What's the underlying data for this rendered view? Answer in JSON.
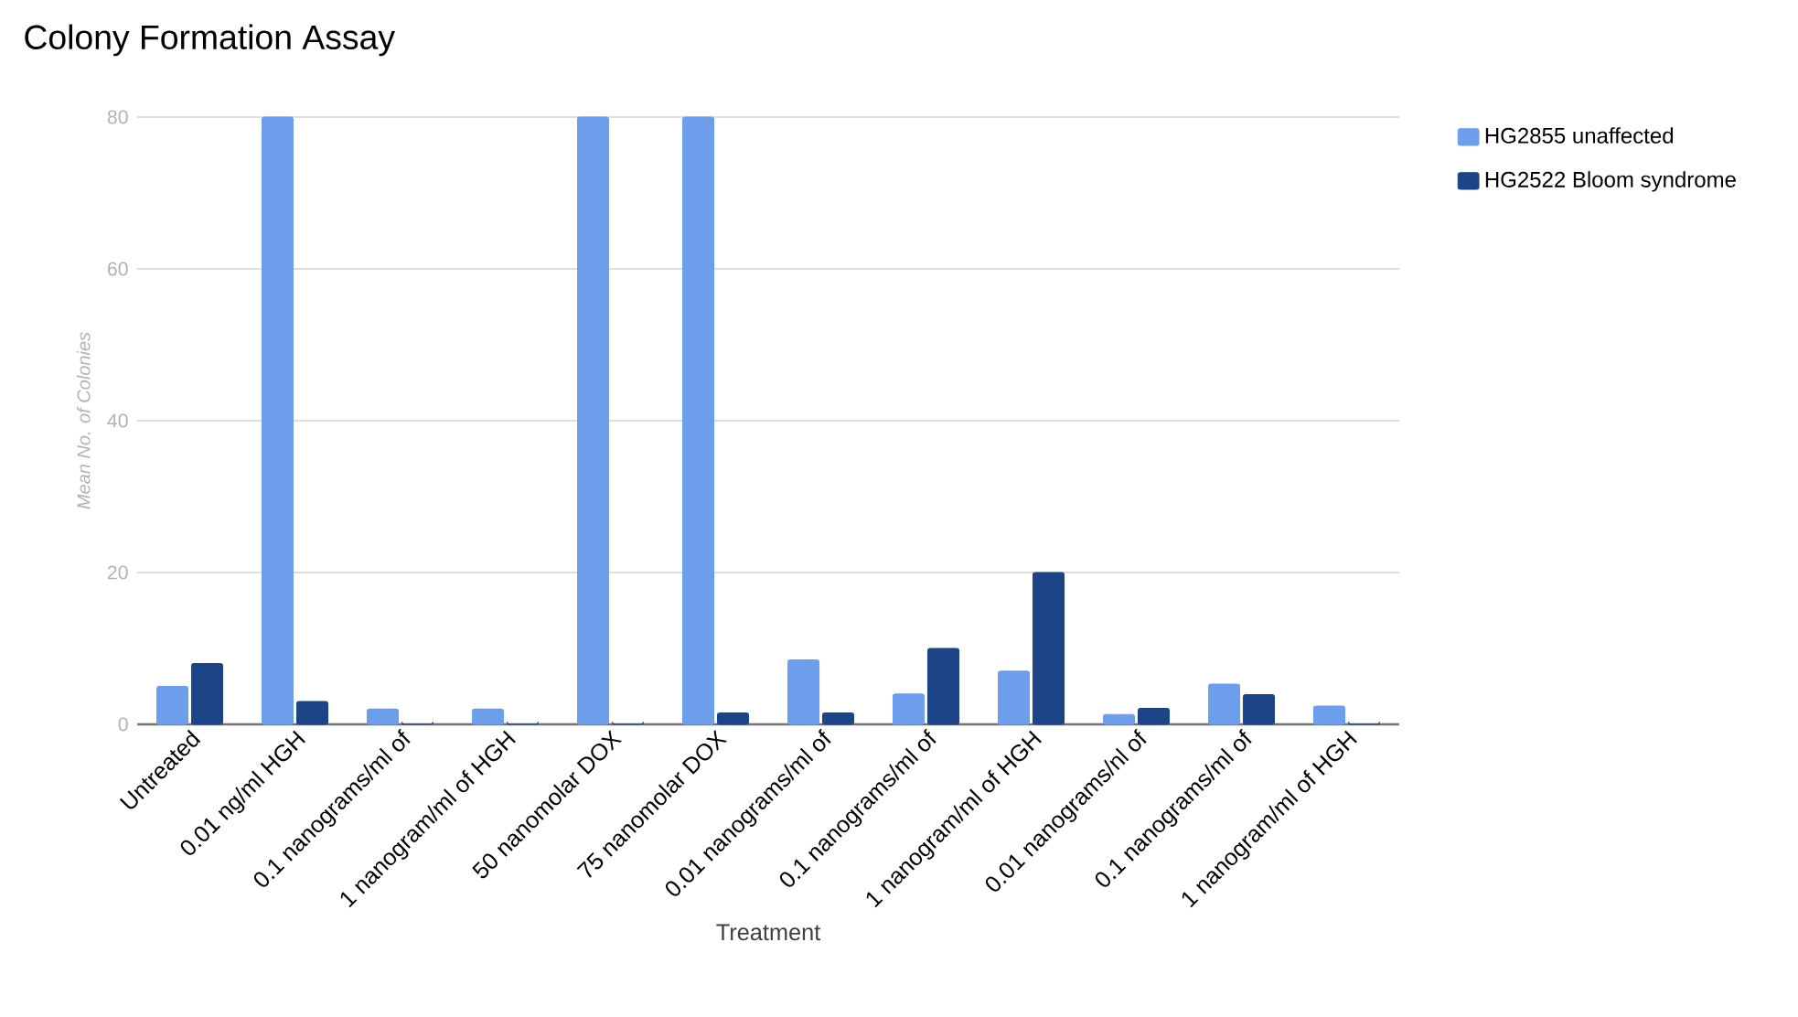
{
  "chart_data": {
    "type": "bar",
    "title": "Colony Formation Assay",
    "xlabel": "Treatment",
    "ylabel": "Mean No. of Colonies",
    "categories": [
      "Untreated",
      "0.01 ng/ml HGH",
      "0.1 nanograms/ml of",
      "1 nanogram/ml of HGH",
      "50 nanomolar DOX",
      "75 nanomolar DOX",
      "0.01 nanograms/ml of",
      "0.1 nanograms/ml of",
      "1  nanogram/ml of HGH",
      "0.01 nanograms/nl of",
      "0.1 nanograms/ml of",
      "1  nanogram/ml of HGH"
    ],
    "series": [
      {
        "name": "HG2855 unaffected",
        "color": "#6d9eeb",
        "values": [
          5,
          80,
          2,
          2,
          80,
          80,
          8.5,
          4,
          7,
          1.3,
          5.3,
          2.4
        ]
      },
      {
        "name": "HG2522 Bloom syndrome",
        "color": "#1c4587",
        "values": [
          8,
          3,
          0,
          0,
          0,
          1.5,
          1.5,
          10,
          20,
          2.1,
          3.9,
          0
        ]
      }
    ],
    "ylim": [
      0,
      80
    ],
    "yticks": [
      0,
      20,
      40,
      60,
      80
    ],
    "grid": "y",
    "legend": "top right"
  }
}
